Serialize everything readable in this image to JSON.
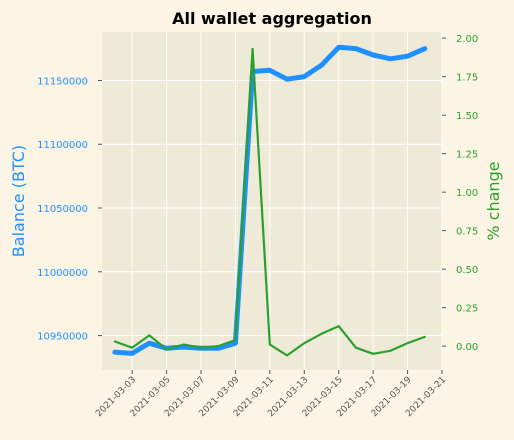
{
  "chart_data": {
    "type": "line",
    "title": "All wallet aggregation",
    "xlabel": "",
    "ylabel_left": "Balance (BTC)",
    "ylabel_right": "% change",
    "x_ticks": [
      "2021-03-03",
      "2021-03-05",
      "2021-03-07",
      "2021-03-09",
      "2021-03-11",
      "2021-03-13",
      "2021-03-15",
      "2021-03-17",
      "2021-03-19",
      "2021-03-21"
    ],
    "x": [
      "2021-03-02",
      "2021-03-03",
      "2021-03-04",
      "2021-03-05",
      "2021-03-06",
      "2021-03-07",
      "2021-03-08",
      "2021-03-09",
      "2021-03-10",
      "2021-03-11",
      "2021-03-12",
      "2021-03-13",
      "2021-03-14",
      "2021-03-15",
      "2021-03-16",
      "2021-03-17",
      "2021-03-18",
      "2021-03-19",
      "2021-03-20"
    ],
    "xlim": [
      "2021-03-01T06:00",
      "2021-03-21T00:00"
    ],
    "ylim_left": [
      10923000,
      11188000
    ],
    "ylim_right": [
      -0.155,
      2.04
    ],
    "yticks_left": [
      10950000,
      11000000,
      11050000,
      11100000,
      11150000
    ],
    "yticks_right": [
      0.0,
      0.25,
      0.5,
      0.75,
      1.0,
      1.25,
      1.5,
      1.75,
      2.0
    ],
    "grid": true,
    "series": [
      {
        "axis": "left",
        "color": "#1e90ff",
        "values": [
          10937000,
          10936000,
          10944000,
          10940000,
          10941000,
          10940000,
          10940000,
          10944000,
          11157000,
          11158000,
          11151000,
          11153000,
          11162000,
          11176000,
          11175000,
          11170000,
          11167000,
          11169000,
          11175000
        ]
      },
      {
        "axis": "right",
        "color": "#2ca02c",
        "values": [
          0.03,
          -0.01,
          0.07,
          -0.02,
          0.01,
          -0.01,
          0.0,
          0.04,
          1.93,
          0.01,
          -0.06,
          0.02,
          0.08,
          0.13,
          -0.01,
          -0.05,
          -0.03,
          0.02,
          0.06
        ]
      }
    ]
  }
}
